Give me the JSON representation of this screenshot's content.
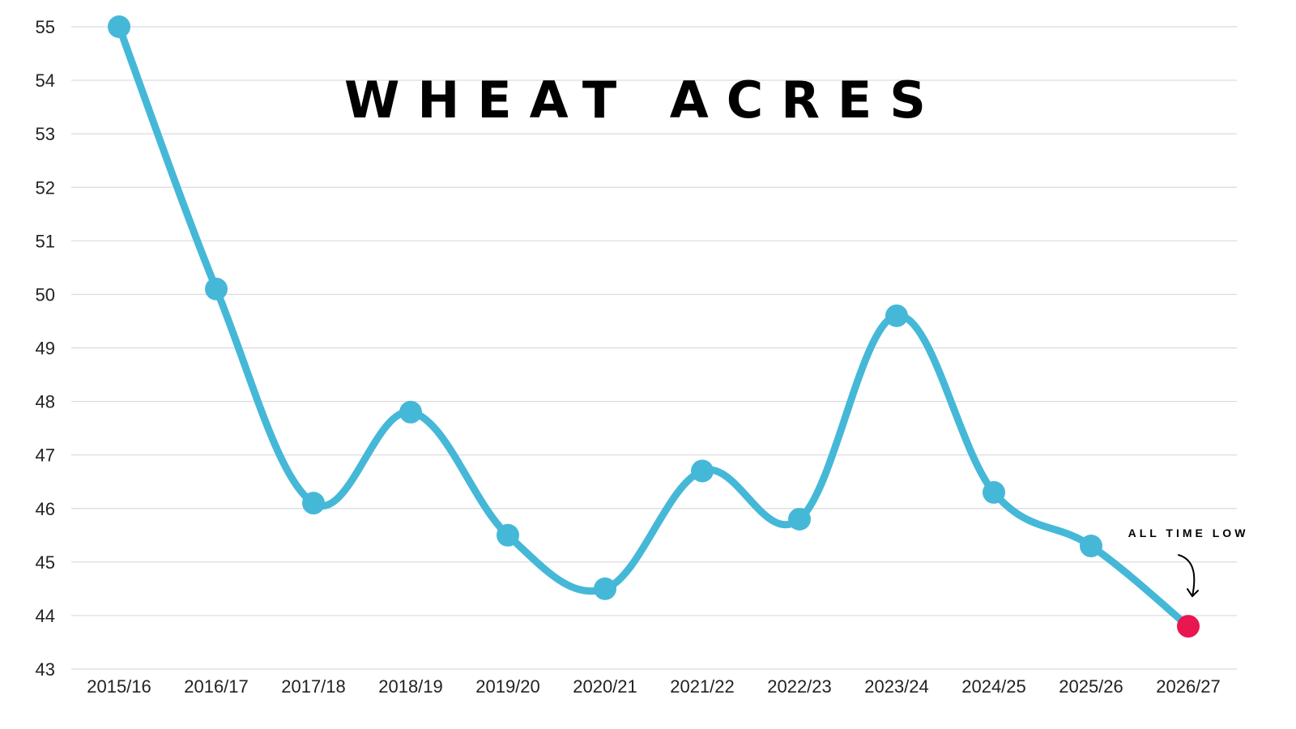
{
  "chart_data": {
    "type": "line",
    "title": "WHEAT ACRES",
    "xlabel": "",
    "ylabel": "",
    "categories": [
      "2015/16",
      "2016/17",
      "2017/18",
      "2018/19",
      "2019/20",
      "2020/21",
      "2021/22",
      "2022/23",
      "2023/24",
      "2024/25",
      "2025/26",
      "2026/27"
    ],
    "series": [
      {
        "values": [
          55.0,
          50.1,
          46.1,
          47.8,
          45.5,
          44.5,
          46.7,
          45.8,
          49.6,
          46.3,
          45.3,
          43.8
        ]
      }
    ],
    "ylim": [
      43,
      55
    ],
    "yticks": [
      43,
      44,
      45,
      46,
      47,
      48,
      49,
      50,
      51,
      52,
      53,
      54,
      55
    ],
    "grid": true,
    "annotation": {
      "text": "ALL TIME LOW",
      "category": "2026/27"
    },
    "colors": {
      "line": "#45b8d8",
      "highlight": "#e8174f",
      "grid": "#d9d9d9",
      "text": "#222222"
    }
  }
}
